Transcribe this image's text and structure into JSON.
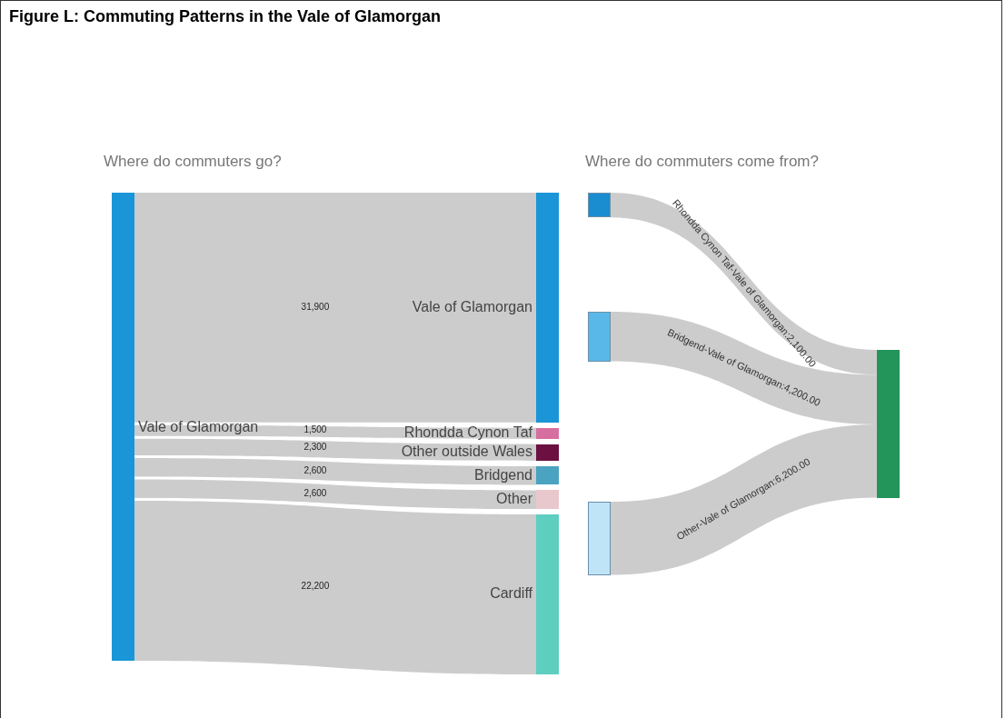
{
  "chart_data": [
    {
      "type": "other",
      "title": "Figure L: Commuting Patterns in the Vale of Glamorgan",
      "subtitle": "Where do commuters go?",
      "annotations": [
        "Vale of Glamorgan"
      ],
      "categories": [
        "Vale of Glamorgan",
        "Rhondda Cynon Taf",
        "Other outside Wales",
        "Bridgend",
        "Other",
        "Cardiff"
      ],
      "values": [
        31900,
        1500,
        2300,
        2600,
        2600,
        22200
      ],
      "value_labels": [
        "31,900",
        "1,500",
        "2,300",
        "2,600",
        "2,600",
        "22,200"
      ],
      "colors": [
        "#cccccc",
        "#cccccc",
        "#cccccc",
        "#cccccc",
        "#cccccc",
        "#cccccc"
      ]
    },
    {
      "type": "other",
      "subtitle": "Where do commuters come from?",
      "categories": [
        "Rhondda Cynon Taf-Vale of Glamorgan",
        "Bridgend-Vale of Glamorgan",
        "Other-Vale of Glamorgan"
      ],
      "values": [
        2100,
        4200,
        6200
      ],
      "value_labels": [
        ":2,100.00",
        ":4,200.00",
        ":6,200.00"
      ],
      "colors": [
        "#cccccc",
        "#cccccc",
        "#cccccc"
      ]
    }
  ]
}
